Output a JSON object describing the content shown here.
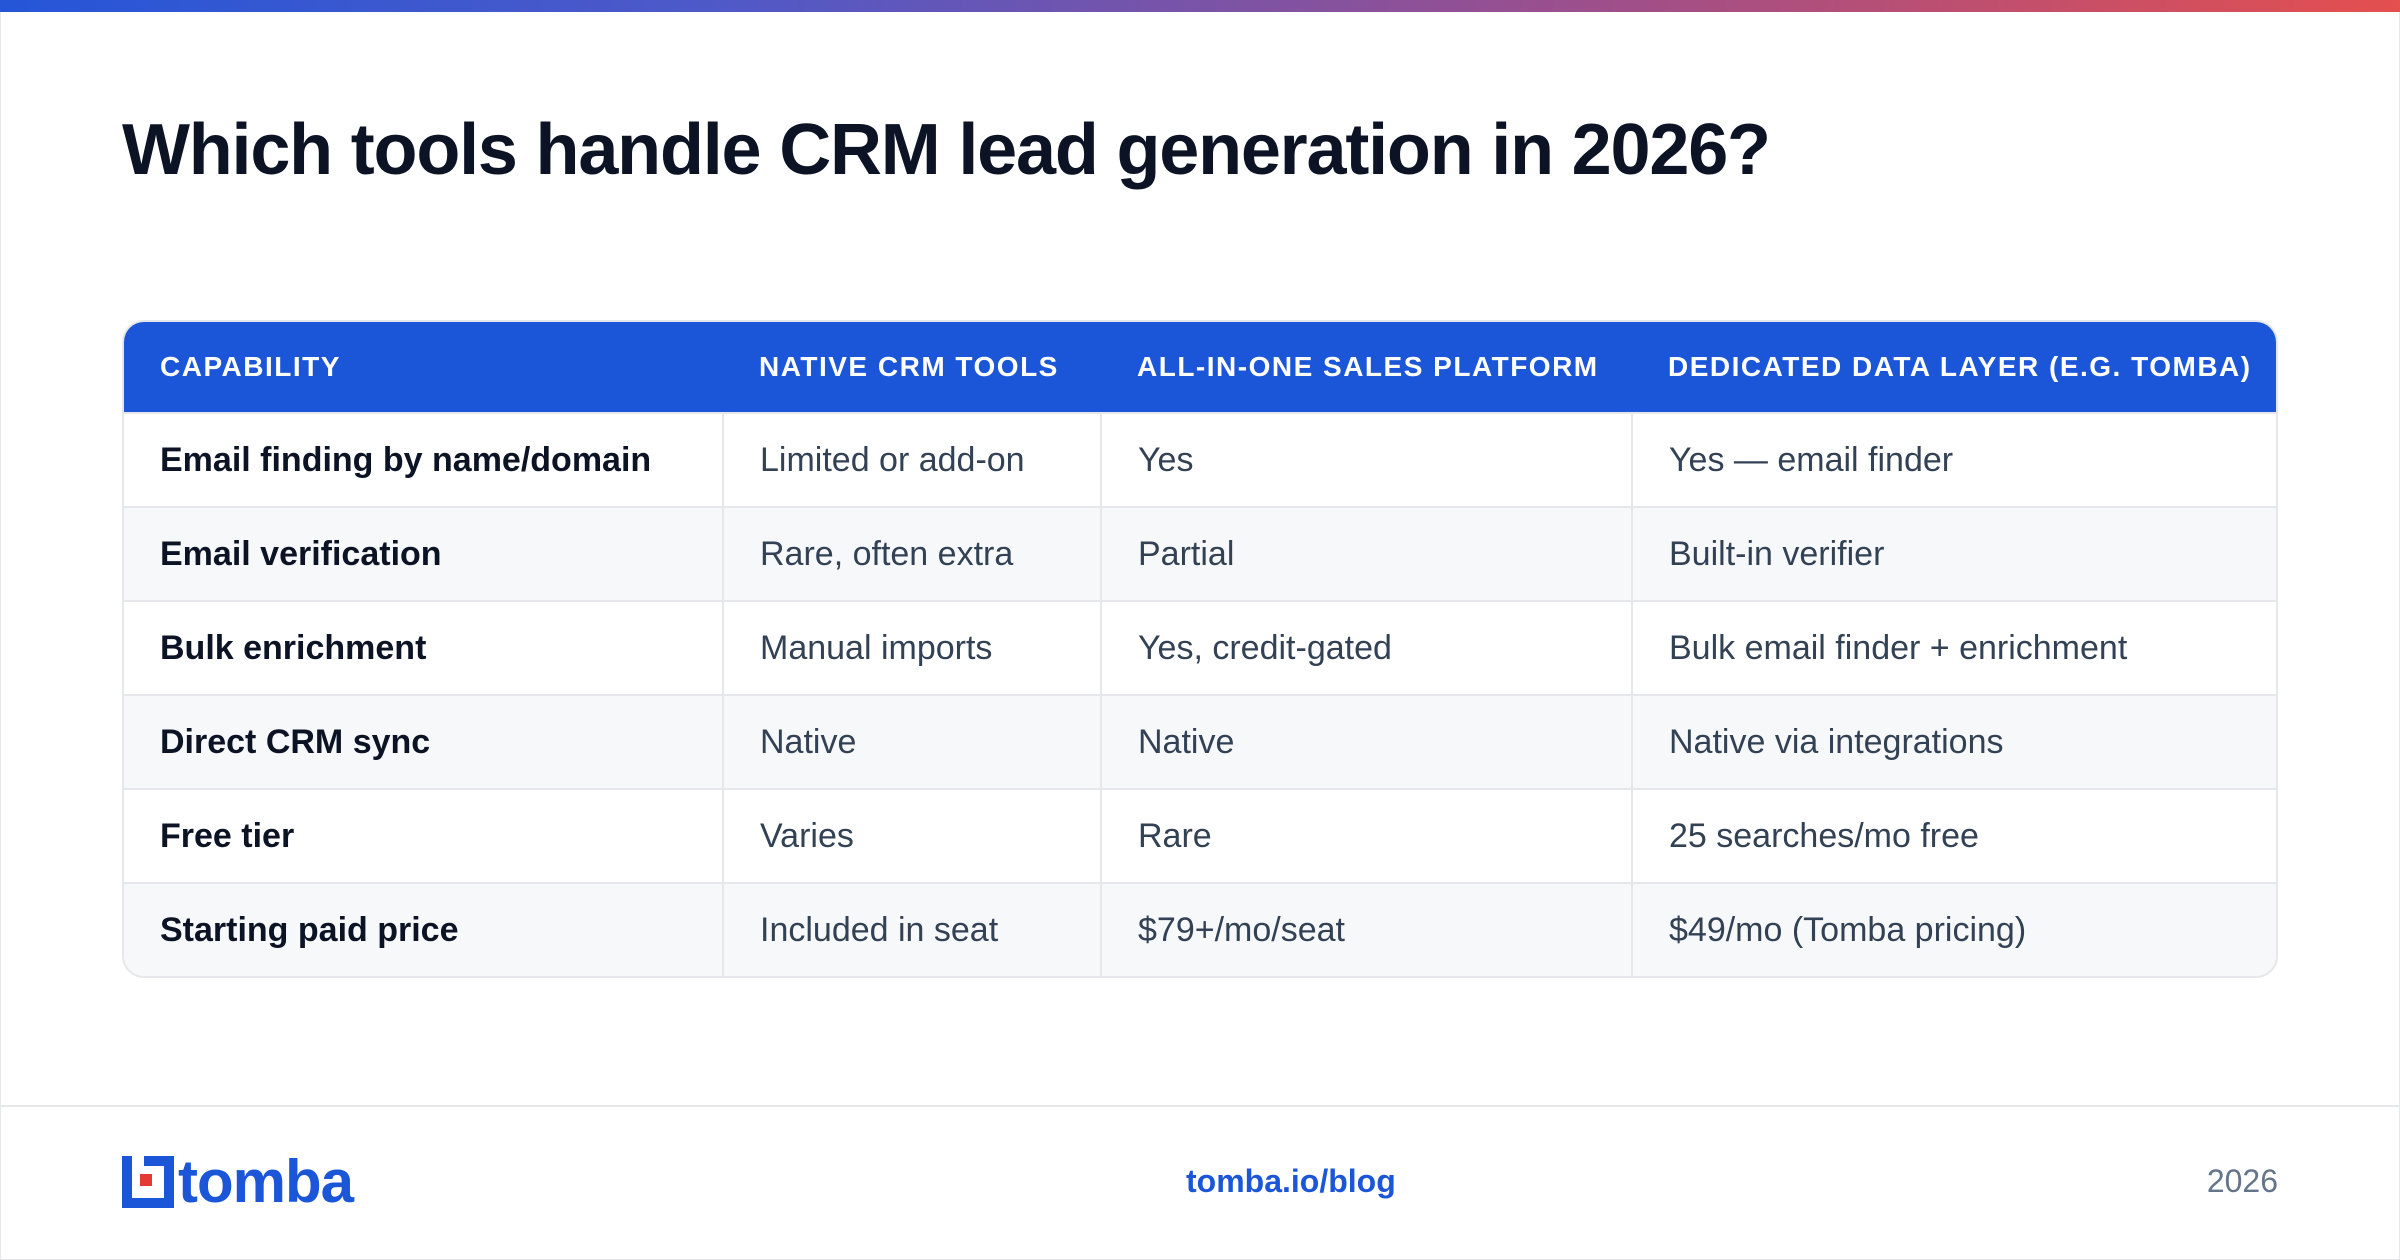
{
  "title": "Which tools handle CRM lead generation in 2026?",
  "colors": {
    "accent": "#1b56d9",
    "gradient_start": "#2556d8",
    "gradient_end": "#e44f4f"
  },
  "table": {
    "headers": [
      "CAPABILITY",
      "NATIVE CRM TOOLS",
      "ALL-IN-ONE SALES PLATFORM",
      "DEDICATED DATA LAYER (E.G. TOMBA)"
    ],
    "rows": [
      [
        "Email finding by name/domain",
        "Limited or add-on",
        "Yes",
        "Yes — email finder"
      ],
      [
        "Email verification",
        "Rare, often extra",
        "Partial",
        "Built-in verifier"
      ],
      [
        "Bulk enrichment",
        "Manual imports",
        "Yes, credit-gated",
        "Bulk email finder + enrichment"
      ],
      [
        "Direct CRM sync",
        "Native",
        "Native",
        "Native via integrations"
      ],
      [
        "Free tier",
        "Varies",
        "Rare",
        "25 searches/mo free"
      ],
      [
        "Starting paid price",
        "Included in seat",
        "$79+/mo/seat",
        "$49/mo (Tomba pricing)"
      ]
    ]
  },
  "footer": {
    "logo_text": "tomba",
    "logo_icon": "tomba-logo-icon",
    "link": "tomba.io/blog",
    "year": "2026"
  }
}
